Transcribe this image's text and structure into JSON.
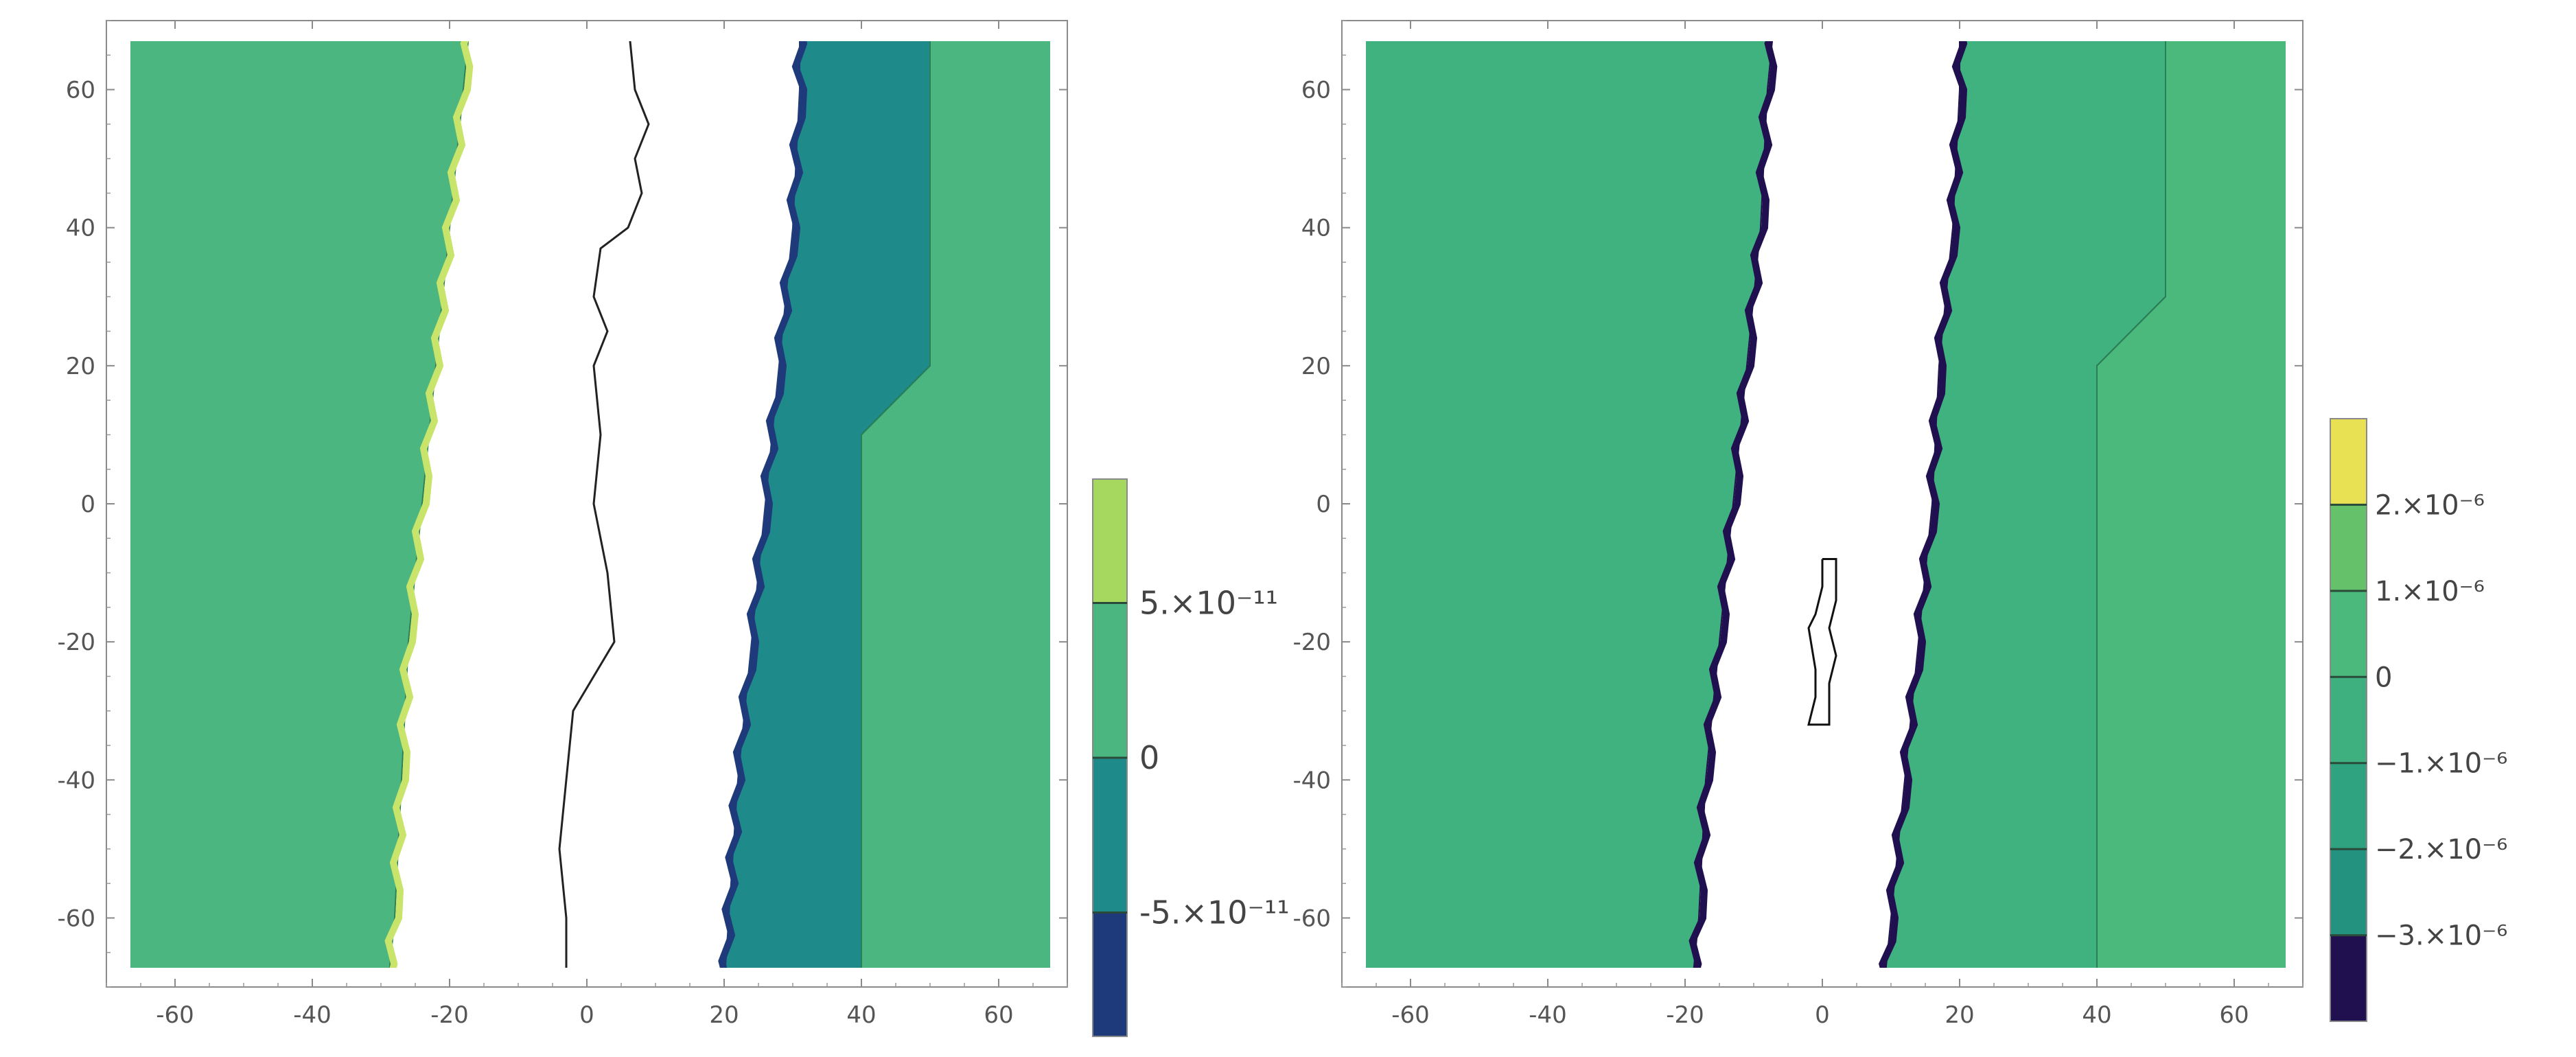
{
  "chart_data": [
    {
      "type": "heatmap",
      "subtype": "contour",
      "title": "",
      "xlabel": "",
      "ylabel": "",
      "xlim": [
        -70,
        70
      ],
      "ylim": [
        -70,
        70
      ],
      "x_ticks": [
        -60,
        -40,
        -20,
        0,
        20,
        40,
        60
      ],
      "y_ticks": [
        -60,
        -40,
        -20,
        0,
        20,
        40,
        60
      ],
      "x_tick_labels": [
        "-60",
        "-40",
        "-20",
        "0",
        "20",
        "40",
        "60"
      ],
      "y_tick_labels": [
        "60",
        "40",
        "20",
        "0",
        "-20",
        "-40",
        "-60"
      ],
      "legend_position": "right",
      "colorbar": {
        "labels": [
          "5.×10⁻¹¹",
          "0",
          "-5.×10⁻¹¹"
        ],
        "label_values": [
          5e-11,
          0,
          -5e-11
        ],
        "range": [
          -9e-11,
          9e-11
        ],
        "bands": [
          {
            "from": -9e-11,
            "to": -5e-11,
            "color": "#1f3a7a"
          },
          {
            "from": -5e-11,
            "to": 0,
            "color": "#1f8a8a"
          },
          {
            "from": 0,
            "to": 5e-11,
            "color": "#4bb680"
          },
          {
            "from": 5e-11,
            "to": 9e-11,
            "color": "#a6d75f"
          }
        ]
      },
      "regions": [
        {
          "name": "left",
          "color": "#4bb680",
          "outline": "#2a7f55",
          "fringe_color": "#c9e46a",
          "points": [
            [
              -70,
              70
            ],
            [
              -17,
              70
            ],
            [
              -18,
              60
            ],
            [
              -22,
              20
            ],
            [
              -24,
              0
            ],
            [
              -26,
              -20
            ],
            [
              -27,
              -40
            ],
            [
              -28,
              -60
            ],
            [
              -29,
              -70
            ],
            [
              -70,
              -70
            ]
          ]
        },
        {
          "name": "center-teal",
          "color": "#1f8a8a",
          "outline": "#1f3a7a",
          "fringe_color": "#1f3a7a",
          "points": [
            [
              31,
              70
            ],
            [
              50,
              70
            ],
            [
              50,
              20
            ],
            [
              40,
              10
            ],
            [
              40,
              -70
            ],
            [
              20,
              -70
            ],
            [
              22,
              -40
            ],
            [
              24,
              -20
            ],
            [
              26,
              0
            ],
            [
              28,
              20
            ],
            [
              30,
              40
            ],
            [
              31,
              60
            ]
          ]
        },
        {
          "name": "right",
          "color": "#4bb680",
          "outline": "#2a7f55",
          "points": [
            [
              50,
              70
            ],
            [
              70,
              70
            ],
            [
              70,
              -70
            ],
            [
              40,
              -70
            ],
            [
              40,
              10
            ],
            [
              50,
              20
            ]
          ]
        }
      ],
      "contour_line": {
        "color": "#222222",
        "points": [
          [
            6,
            70
          ],
          [
            7,
            60
          ],
          [
            9,
            55
          ],
          [
            7,
            50
          ],
          [
            8,
            45
          ],
          [
            6,
            40
          ],
          [
            2,
            37
          ],
          [
            1,
            30
          ],
          [
            3,
            25
          ],
          [
            1,
            20
          ],
          [
            2,
            10
          ],
          [
            1,
            0
          ],
          [
            2,
            -5
          ],
          [
            3,
            -10
          ],
          [
            4,
            -20
          ],
          [
            1,
            -25
          ],
          [
            -2,
            -30
          ],
          [
            -3,
            -40
          ],
          [
            -4,
            -50
          ],
          [
            -3,
            -60
          ],
          [
            -3,
            -70
          ]
        ]
      }
    },
    {
      "type": "heatmap",
      "subtype": "contour",
      "title": "",
      "xlabel": "",
      "ylabel": "",
      "xlim": [
        -70,
        70
      ],
      "ylim": [
        -70,
        70
      ],
      "x_ticks": [
        -60,
        -40,
        -20,
        0,
        20,
        40,
        60
      ],
      "y_ticks": [
        -60,
        -40,
        -20,
        0,
        20,
        40,
        60
      ],
      "x_tick_labels": [
        "-60",
        "-40",
        "-20",
        "0",
        "20",
        "40",
        "60"
      ],
      "y_tick_labels": [
        "60",
        "40",
        "20",
        "0",
        "-20",
        "-40",
        "-60"
      ],
      "legend_position": "right",
      "colorbar": {
        "labels": [
          "2.×10⁻⁶",
          "1.×10⁻⁶",
          "0",
          "−1.×10⁻⁶",
          "−2.×10⁻⁶",
          "−3.×10⁻⁶"
        ],
        "label_values": [
          2e-06,
          1e-06,
          0,
          -1e-06,
          -2e-06,
          -3e-06
        ],
        "range": [
          -4e-06,
          3e-06
        ],
        "bands": [
          {
            "from": -4e-06,
            "to": -3e-06,
            "color": "#21104f"
          },
          {
            "from": -3e-06,
            "to": -2e-06,
            "color": "#23927e"
          },
          {
            "from": -2e-06,
            "to": -1e-06,
            "color": "#2fa27f"
          },
          {
            "from": -1e-06,
            "to": 0,
            "color": "#3eb07f"
          },
          {
            "from": 0,
            "to": 1e-06,
            "color": "#4bb87c"
          },
          {
            "from": 1e-06,
            "to": 2e-06,
            "color": "#66c26a"
          },
          {
            "from": 2e-06,
            "to": 3e-06,
            "color": "#e8e153"
          }
        ]
      },
      "regions": [
        {
          "name": "left",
          "color": "#40b27f",
          "outline": "#21104f",
          "fringe_color": "#21104f",
          "points": [
            [
              -70,
              70
            ],
            [
              -7,
              70
            ],
            [
              -8,
              60
            ],
            [
              -9,
              40
            ],
            [
              -11,
              20
            ],
            [
              -13,
              0
            ],
            [
              -15,
              -20
            ],
            [
              -17,
              -40
            ],
            [
              -18,
              -60
            ],
            [
              -19,
              -70
            ],
            [
              -70,
              -70
            ]
          ]
        },
        {
          "name": "center-right",
          "color": "#40b27f",
          "outline": "#21104f",
          "fringe_color": "#21104f",
          "points": [
            [
              20,
              70
            ],
            [
              50,
              70
            ],
            [
              50,
              30
            ],
            [
              40,
              20
            ],
            [
              40,
              -70
            ],
            [
              9,
              -70
            ],
            [
              10,
              -60
            ],
            [
              12,
              -40
            ],
            [
              14,
              -20
            ],
            [
              16,
              0
            ],
            [
              17,
              20
            ],
            [
              19,
              40
            ],
            [
              20,
              60
            ]
          ]
        },
        {
          "name": "right",
          "color": "#4bb87c",
          "outline": "#2a7f55",
          "points": [
            [
              50,
              70
            ],
            [
              70,
              70
            ],
            [
              70,
              -70
            ],
            [
              40,
              -70
            ],
            [
              40,
              20
            ],
            [
              50,
              30
            ]
          ]
        }
      ],
      "contour_line": {
        "color": "#111111",
        "points": [
          [
            0,
            -8
          ],
          [
            2,
            -8
          ],
          [
            2,
            -14
          ],
          [
            1,
            -18
          ],
          [
            2,
            -22
          ],
          [
            1,
            -26
          ],
          [
            1,
            -32
          ],
          [
            -2,
            -32
          ],
          [
            -1,
            -28
          ],
          [
            -1,
            -24
          ],
          [
            -2,
            -18
          ],
          [
            -1,
            -16
          ],
          [
            0,
            -12
          ],
          [
            0,
            -8
          ]
        ]
      }
    }
  ]
}
